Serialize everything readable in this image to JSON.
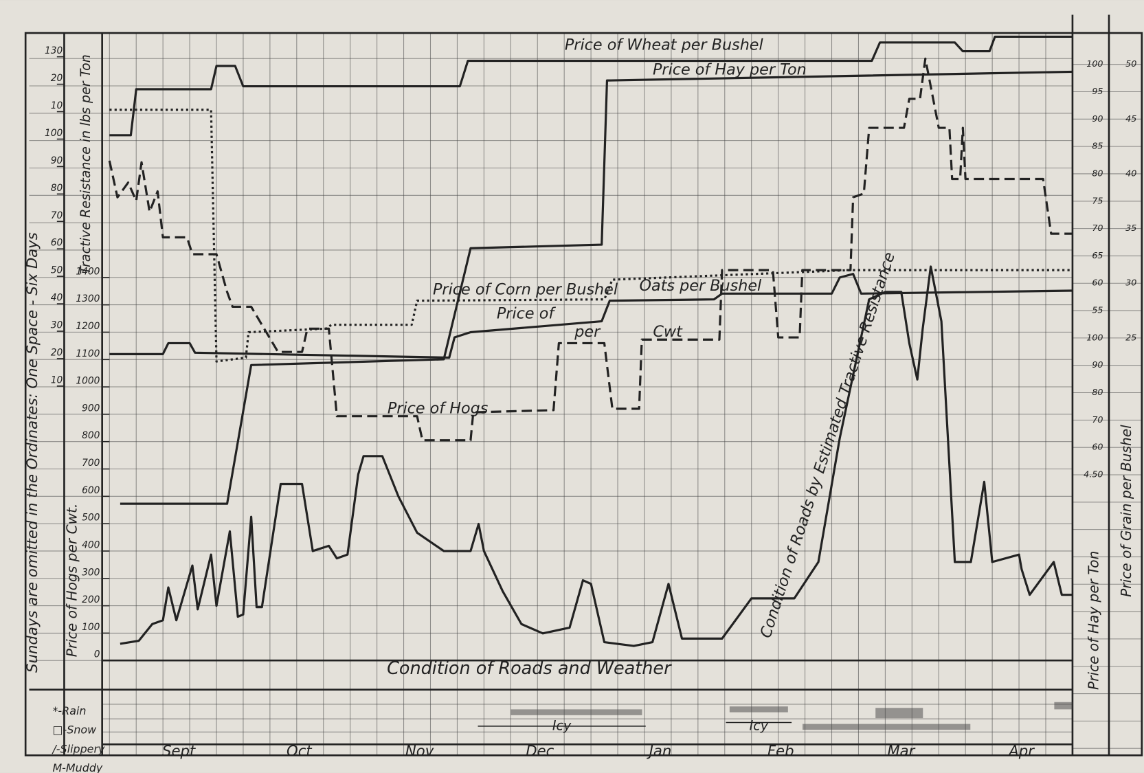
{
  "chart_data": {
    "type": "line",
    "side_title": "Sundays are omitted in the Ordinates: One Space - Six Days",
    "y_axis_label": "Price of Hogs per Cwt.",
    "y2_axis_label": "Tractive Resistance in lbs per Ton",
    "hay_axis_label": "Price of Hay per Ton",
    "grain_axis_label": "Price of Grain per Bushel",
    "section_title": "Condition of Roads and Weather",
    "xlim": [
      0,
      36
    ],
    "ylim": [
      0,
      2307
    ],
    "yticks": [
      0,
      100,
      200,
      300,
      400,
      500,
      600,
      700,
      800,
      900,
      1000,
      1100,
      1200,
      1300,
      1400
    ],
    "y2lim": [
      -90,
      140
    ],
    "y2ticks": [
      10,
      20,
      30,
      40,
      50,
      60,
      70,
      80,
      90,
      100,
      {
        "value": 110,
        "label": "10"
      },
      {
        "value": 120,
        "label": "20"
      },
      130
    ],
    "hay_axis_labels": [
      "100",
      "95",
      "90",
      "85",
      "80",
      "75",
      "70",
      "65",
      "60",
      "55",
      "100",
      "90",
      "80",
      "70",
      "60",
      "4.50"
    ],
    "grain_axis_labels": [
      "50",
      "45",
      "40",
      "35",
      "30",
      "25"
    ],
    "grid": true,
    "series": [
      {
        "name": "Price of Wheat per Bushel",
        "color": "#222222",
        "line_style": "solid",
        "x": [
          0,
          0.8,
          1.0,
          3.8,
          4.0,
          4.7,
          5.0,
          13.1,
          13.4,
          28.5,
          28.8,
          31.6,
          31.9,
          32.9,
          33.1,
          36
        ],
        "values": [
          1920,
          1920,
          2088,
          2088,
          2173,
          2173,
          2099,
          2099,
          2192,
          2192,
          2259,
          2259,
          2227,
          2227,
          2280,
          2280
        ]
      },
      {
        "name": "Price of Hay per Ton",
        "color": "#222222",
        "line_style": "solid",
        "x": [
          0.4,
          4.4,
          5.3,
          12.5,
          13.5,
          18.4,
          18.6,
          36
        ],
        "values": [
          573,
          573,
          1080,
          1101,
          1507,
          1520,
          2120,
          2152
        ]
      },
      {
        "name": "Price of Corn per Bushel",
        "color": "#222222",
        "line_style": "dotted",
        "x": [
          0,
          3.8,
          4.0,
          5.1,
          5.2,
          8.1,
          8.3,
          11.3,
          11.5,
          18.5,
          18.8,
          27.7,
          36
        ],
        "values": [
          2013,
          2013,
          1093,
          1107,
          1200,
          1213,
          1227,
          1227,
          1315,
          1320,
          1392,
          1427,
          1427
        ]
      },
      {
        "name": "Oats per Bushel",
        "color": "#222222",
        "line_style": "solid",
        "x": [
          0,
          2.0,
          2.2,
          3.0,
          3.2,
          12.7,
          12.9,
          13.5,
          18.4,
          18.7,
          22.6,
          22.9,
          27.0,
          27.3,
          27.8,
          28.1,
          36
        ],
        "values": [
          1120,
          1120,
          1160,
          1160,
          1125,
          1107,
          1181,
          1200,
          1240,
          1315,
          1320,
          1341,
          1341,
          1400,
          1413,
          1341,
          1352
        ]
      },
      {
        "name": "Price of Hogs",
        "color": "#222222",
        "line_style": "dashed",
        "x": [
          0,
          0.3,
          0.7,
          1.0,
          1.2,
          1.5,
          1.8,
          2.0,
          2.9,
          3.1,
          4.0,
          4.4,
          4.6,
          5.3,
          6.3,
          7.2,
          7.4,
          8.2,
          8.5,
          11.5,
          11.7,
          13.5,
          13.6,
          16.6,
          16.8,
          18.5,
          18.8,
          19.8,
          19.9,
          22.8,
          22.9,
          24.8,
          25.0,
          25.8,
          25.9,
          27.7,
          27.8,
          28.2,
          28.4,
          29.7,
          29.9,
          30.3,
          30.5,
          31.0,
          31.4,
          31.5,
          31.8,
          31.9,
          32.0,
          34.9,
          35.2,
          36
        ],
        "values": [
          1827,
          1693,
          1747,
          1680,
          1821,
          1640,
          1715,
          1547,
          1547,
          1485,
          1485,
          1347,
          1293,
          1293,
          1128,
          1128,
          1213,
          1213,
          893,
          893,
          805,
          805,
          907,
          915,
          1160,
          1160,
          920,
          920,
          1173,
          1173,
          1427,
          1427,
          1181,
          1181,
          1427,
          1427,
          1693,
          1707,
          1947,
          1947,
          2053,
          2053,
          2200,
          1947,
          1947,
          1760,
          1760,
          1947,
          1760,
          1760,
          1560,
          1560
        ]
      },
      {
        "name": "Condition of Roads by Estimated Tractive Resistance",
        "color": "#222222",
        "line_style": "solid",
        "x": [
          0.4,
          1.1,
          1.6,
          2.0,
          2.2,
          2.5,
          3.1,
          3.3,
          3.8,
          4.0,
          4.5,
          4.8,
          5.0,
          5.3,
          5.5,
          5.7,
          6.4,
          7.2,
          7.6,
          8.2,
          8.5,
          8.9,
          9.3,
          9.5,
          10.2,
          10.8,
          11.5,
          12.5,
          13.5,
          13.8,
          14.0,
          14.7,
          15.4,
          16.2,
          17.2,
          17.7,
          18.0,
          18.5,
          19.6,
          20.3,
          20.9,
          21.4,
          22.9,
          24.0,
          25.6,
          26.5,
          27.3,
          28.4,
          29.0,
          29.6,
          29.9,
          30.2,
          30.4,
          30.7,
          31.1,
          31.6,
          32.2,
          32.7,
          33.0,
          34.0,
          34.1,
          34.4,
          35.3,
          35.6,
          36
        ],
        "values": [
          61,
          72,
          133,
          147,
          267,
          147,
          347,
          187,
          387,
          200,
          472,
          160,
          168,
          525,
          195,
          195,
          645,
          645,
          400,
          419,
          373,
          387,
          680,
          747,
          747,
          600,
          467,
          400,
          400,
          499,
          400,
          253,
          133,
          99,
          120,
          293,
          280,
          67,
          53,
          67,
          280,
          80,
          80,
          227,
          227,
          360,
          813,
          1320,
          1347,
          1347,
          1160,
          1027,
          1213,
          1440,
          1240,
          360,
          360,
          653,
          360,
          387,
          333,
          240,
          360,
          240,
          240
        ]
      }
    ],
    "annotations": [
      "Price of",
      "per",
      "Cwt"
    ],
    "weather_legend": [
      "*-Rain",
      "□-Snow",
      "/-Slippery",
      "M-Muddy"
    ],
    "months": [
      "Sept",
      "Oct",
      "Nov",
      "Dec",
      "Jan",
      "Feb",
      "Mar",
      "Apr"
    ],
    "icy_labels": [
      "Icy",
      "Icy"
    ]
  }
}
